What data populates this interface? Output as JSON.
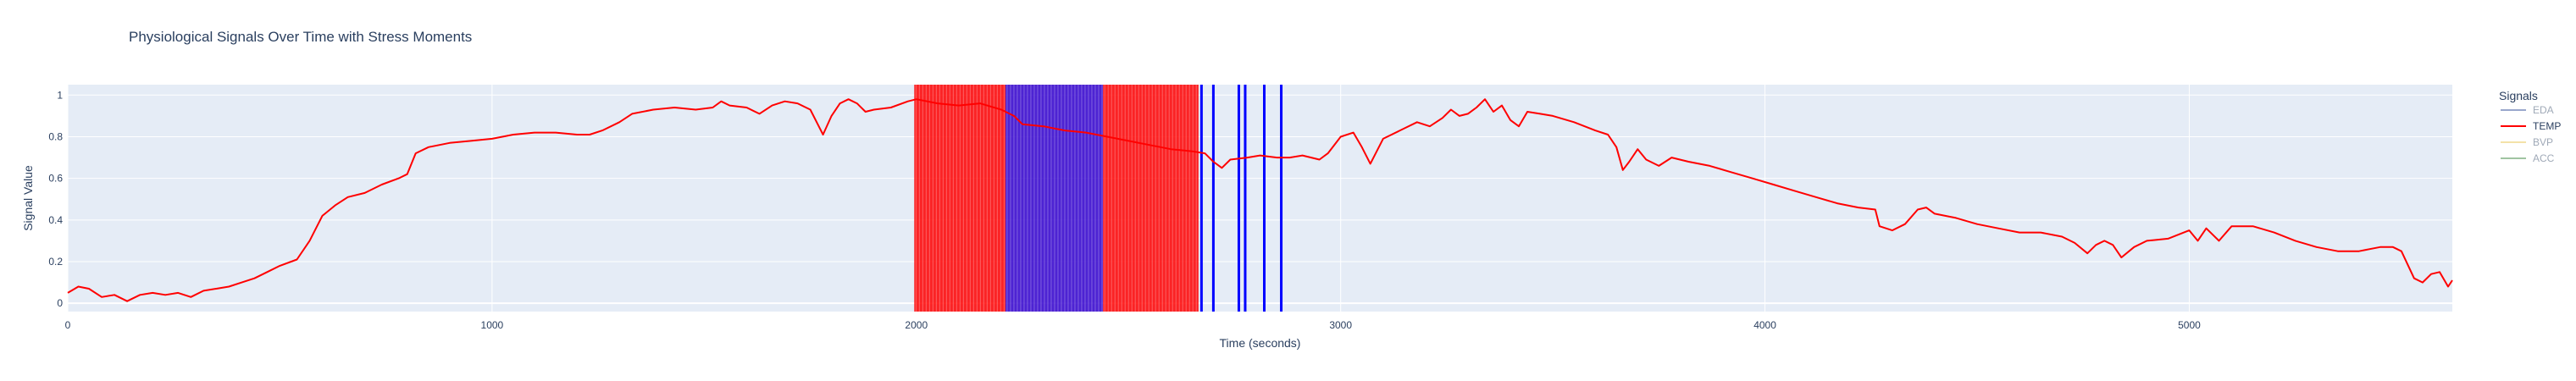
{
  "chart_data": {
    "type": "line",
    "title": "Physiological Signals Over Time with Stress Moments",
    "xlabel": "Time (seconds)",
    "ylabel": "Signal Value",
    "xlim": [
      0,
      5620
    ],
    "ylim": [
      -0.04,
      1.05
    ],
    "x_ticks": [
      0,
      1000,
      2000,
      3000,
      4000,
      5000
    ],
    "x_tick_labels": [
      "0",
      "1000",
      "2000",
      "3000",
      "4000",
      "5000"
    ],
    "y_ticks": [
      0,
      0.2,
      0.4,
      0.6,
      0.8,
      1
    ],
    "y_tick_labels": [
      "0",
      "0.2",
      "0.4",
      "0.6",
      "0.8",
      "1"
    ],
    "grid": true,
    "legend": {
      "title": "Signals",
      "placement": "right",
      "entries": [
        {
          "name": "EDA",
          "color": "#1f3d8f",
          "visible": false
        },
        {
          "name": "TEMP",
          "color": "#ff0000",
          "visible": true
        },
        {
          "name": "BVP",
          "color": "#e8c040",
          "visible": false
        },
        {
          "name": "ACC",
          "color": "#2e7d32",
          "visible": false
        }
      ]
    },
    "series": [
      {
        "name": "TEMP",
        "color": "#ff0000",
        "points": [
          [
            0,
            0.05
          ],
          [
            25,
            0.08
          ],
          [
            50,
            0.07
          ],
          [
            80,
            0.03
          ],
          [
            110,
            0.04
          ],
          [
            140,
            0.01
          ],
          [
            170,
            0.04
          ],
          [
            200,
            0.05
          ],
          [
            230,
            0.04
          ],
          [
            260,
            0.05
          ],
          [
            290,
            0.03
          ],
          [
            320,
            0.06
          ],
          [
            350,
            0.07
          ],
          [
            380,
            0.08
          ],
          [
            410,
            0.1
          ],
          [
            440,
            0.12
          ],
          [
            470,
            0.15
          ],
          [
            500,
            0.18
          ],
          [
            540,
            0.21
          ],
          [
            570,
            0.3
          ],
          [
            600,
            0.42
          ],
          [
            630,
            0.47
          ],
          [
            660,
            0.51
          ],
          [
            700,
            0.53
          ],
          [
            740,
            0.57
          ],
          [
            780,
            0.6
          ],
          [
            800,
            0.62
          ],
          [
            820,
            0.72
          ],
          [
            850,
            0.75
          ],
          [
            900,
            0.77
          ],
          [
            950,
            0.78
          ],
          [
            1000,
            0.79
          ],
          [
            1050,
            0.81
          ],
          [
            1100,
            0.82
          ],
          [
            1150,
            0.82
          ],
          [
            1200,
            0.81
          ],
          [
            1230,
            0.81
          ],
          [
            1260,
            0.83
          ],
          [
            1300,
            0.87
          ],
          [
            1330,
            0.91
          ],
          [
            1380,
            0.93
          ],
          [
            1430,
            0.94
          ],
          [
            1480,
            0.93
          ],
          [
            1520,
            0.94
          ],
          [
            1540,
            0.97
          ],
          [
            1560,
            0.95
          ],
          [
            1600,
            0.94
          ],
          [
            1630,
            0.91
          ],
          [
            1660,
            0.95
          ],
          [
            1690,
            0.97
          ],
          [
            1720,
            0.96
          ],
          [
            1750,
            0.93
          ],
          [
            1770,
            0.85
          ],
          [
            1780,
            0.81
          ],
          [
            1800,
            0.9
          ],
          [
            1820,
            0.96
          ],
          [
            1840,
            0.98
          ],
          [
            1860,
            0.96
          ],
          [
            1880,
            0.92
          ],
          [
            1900,
            0.93
          ],
          [
            1940,
            0.94
          ],
          [
            1980,
            0.97
          ],
          [
            2000,
            0.98
          ],
          [
            2050,
            0.96
          ],
          [
            2100,
            0.95
          ],
          [
            2150,
            0.96
          ],
          [
            2200,
            0.93
          ],
          [
            2230,
            0.9
          ],
          [
            2250,
            0.86
          ],
          [
            2300,
            0.85
          ],
          [
            2350,
            0.83
          ],
          [
            2400,
            0.82
          ],
          [
            2450,
            0.8
          ],
          [
            2500,
            0.78
          ],
          [
            2550,
            0.76
          ],
          [
            2600,
            0.74
          ],
          [
            2650,
            0.73
          ],
          [
            2680,
            0.72
          ],
          [
            2700,
            0.68
          ],
          [
            2720,
            0.65
          ],
          [
            2740,
            0.69
          ],
          [
            2780,
            0.7
          ],
          [
            2810,
            0.71
          ],
          [
            2850,
            0.7
          ],
          [
            2880,
            0.7
          ],
          [
            2910,
            0.71
          ],
          [
            2950,
            0.69
          ],
          [
            2970,
            0.72
          ],
          [
            3000,
            0.8
          ],
          [
            3030,
            0.82
          ],
          [
            3050,
            0.75
          ],
          [
            3070,
            0.67
          ],
          [
            3100,
            0.79
          ],
          [
            3150,
            0.84
          ],
          [
            3180,
            0.87
          ],
          [
            3210,
            0.85
          ],
          [
            3240,
            0.89
          ],
          [
            3260,
            0.93
          ],
          [
            3280,
            0.9
          ],
          [
            3300,
            0.91
          ],
          [
            3320,
            0.94
          ],
          [
            3340,
            0.98
          ],
          [
            3360,
            0.92
          ],
          [
            3380,
            0.95
          ],
          [
            3400,
            0.88
          ],
          [
            3420,
            0.85
          ],
          [
            3440,
            0.92
          ],
          [
            3470,
            0.91
          ],
          [
            3500,
            0.9
          ],
          [
            3550,
            0.87
          ],
          [
            3600,
            0.83
          ],
          [
            3630,
            0.81
          ],
          [
            3650,
            0.75
          ],
          [
            3665,
            0.64
          ],
          [
            3680,
            0.68
          ],
          [
            3700,
            0.74
          ],
          [
            3720,
            0.69
          ],
          [
            3750,
            0.66
          ],
          [
            3780,
            0.7
          ],
          [
            3820,
            0.68
          ],
          [
            3870,
            0.66
          ],
          [
            3920,
            0.63
          ],
          [
            3970,
            0.6
          ],
          [
            4020,
            0.57
          ],
          [
            4070,
            0.54
          ],
          [
            4120,
            0.51
          ],
          [
            4170,
            0.48
          ],
          [
            4220,
            0.46
          ],
          [
            4260,
            0.45
          ],
          [
            4270,
            0.37
          ],
          [
            4300,
            0.35
          ],
          [
            4330,
            0.38
          ],
          [
            4360,
            0.45
          ],
          [
            4380,
            0.46
          ],
          [
            4400,
            0.43
          ],
          [
            4450,
            0.41
          ],
          [
            4500,
            0.38
          ],
          [
            4550,
            0.36
          ],
          [
            4600,
            0.34
          ],
          [
            4650,
            0.34
          ],
          [
            4700,
            0.32
          ],
          [
            4730,
            0.29
          ],
          [
            4760,
            0.24
          ],
          [
            4780,
            0.28
          ],
          [
            4800,
            0.3
          ],
          [
            4820,
            0.28
          ],
          [
            4840,
            0.22
          ],
          [
            4870,
            0.27
          ],
          [
            4900,
            0.3
          ],
          [
            4950,
            0.31
          ],
          [
            5000,
            0.35
          ],
          [
            5020,
            0.3
          ],
          [
            5040,
            0.36
          ],
          [
            5070,
            0.3
          ],
          [
            5100,
            0.37
          ],
          [
            5150,
            0.37
          ],
          [
            5200,
            0.34
          ],
          [
            5250,
            0.3
          ],
          [
            5300,
            0.27
          ],
          [
            5350,
            0.25
          ],
          [
            5400,
            0.25
          ],
          [
            5450,
            0.27
          ],
          [
            5480,
            0.27
          ],
          [
            5500,
            0.25
          ],
          [
            5530,
            0.12
          ],
          [
            5550,
            0.1
          ],
          [
            5570,
            0.14
          ],
          [
            5590,
            0.15
          ],
          [
            5610,
            0.08
          ],
          [
            5620,
            0.11
          ]
        ]
      }
    ],
    "stress_bands": [
      {
        "x0": 1995,
        "x1": 2210,
        "color": "#ff0000"
      },
      {
        "x0": 2210,
        "x1": 2440,
        "color": "#3300cc"
      },
      {
        "x0": 2440,
        "x1": 2665,
        "color": "#ff0000"
      }
    ],
    "stress_lines": [
      {
        "x": 2672,
        "color": "#0000ff"
      },
      {
        "x": 2700,
        "color": "#0000ff"
      },
      {
        "x": 2760,
        "color": "#0000ff"
      },
      {
        "x": 2775,
        "color": "#0000ff"
      },
      {
        "x": 2820,
        "color": "#0000ff"
      },
      {
        "x": 2860,
        "color": "#0000ff"
      }
    ]
  }
}
